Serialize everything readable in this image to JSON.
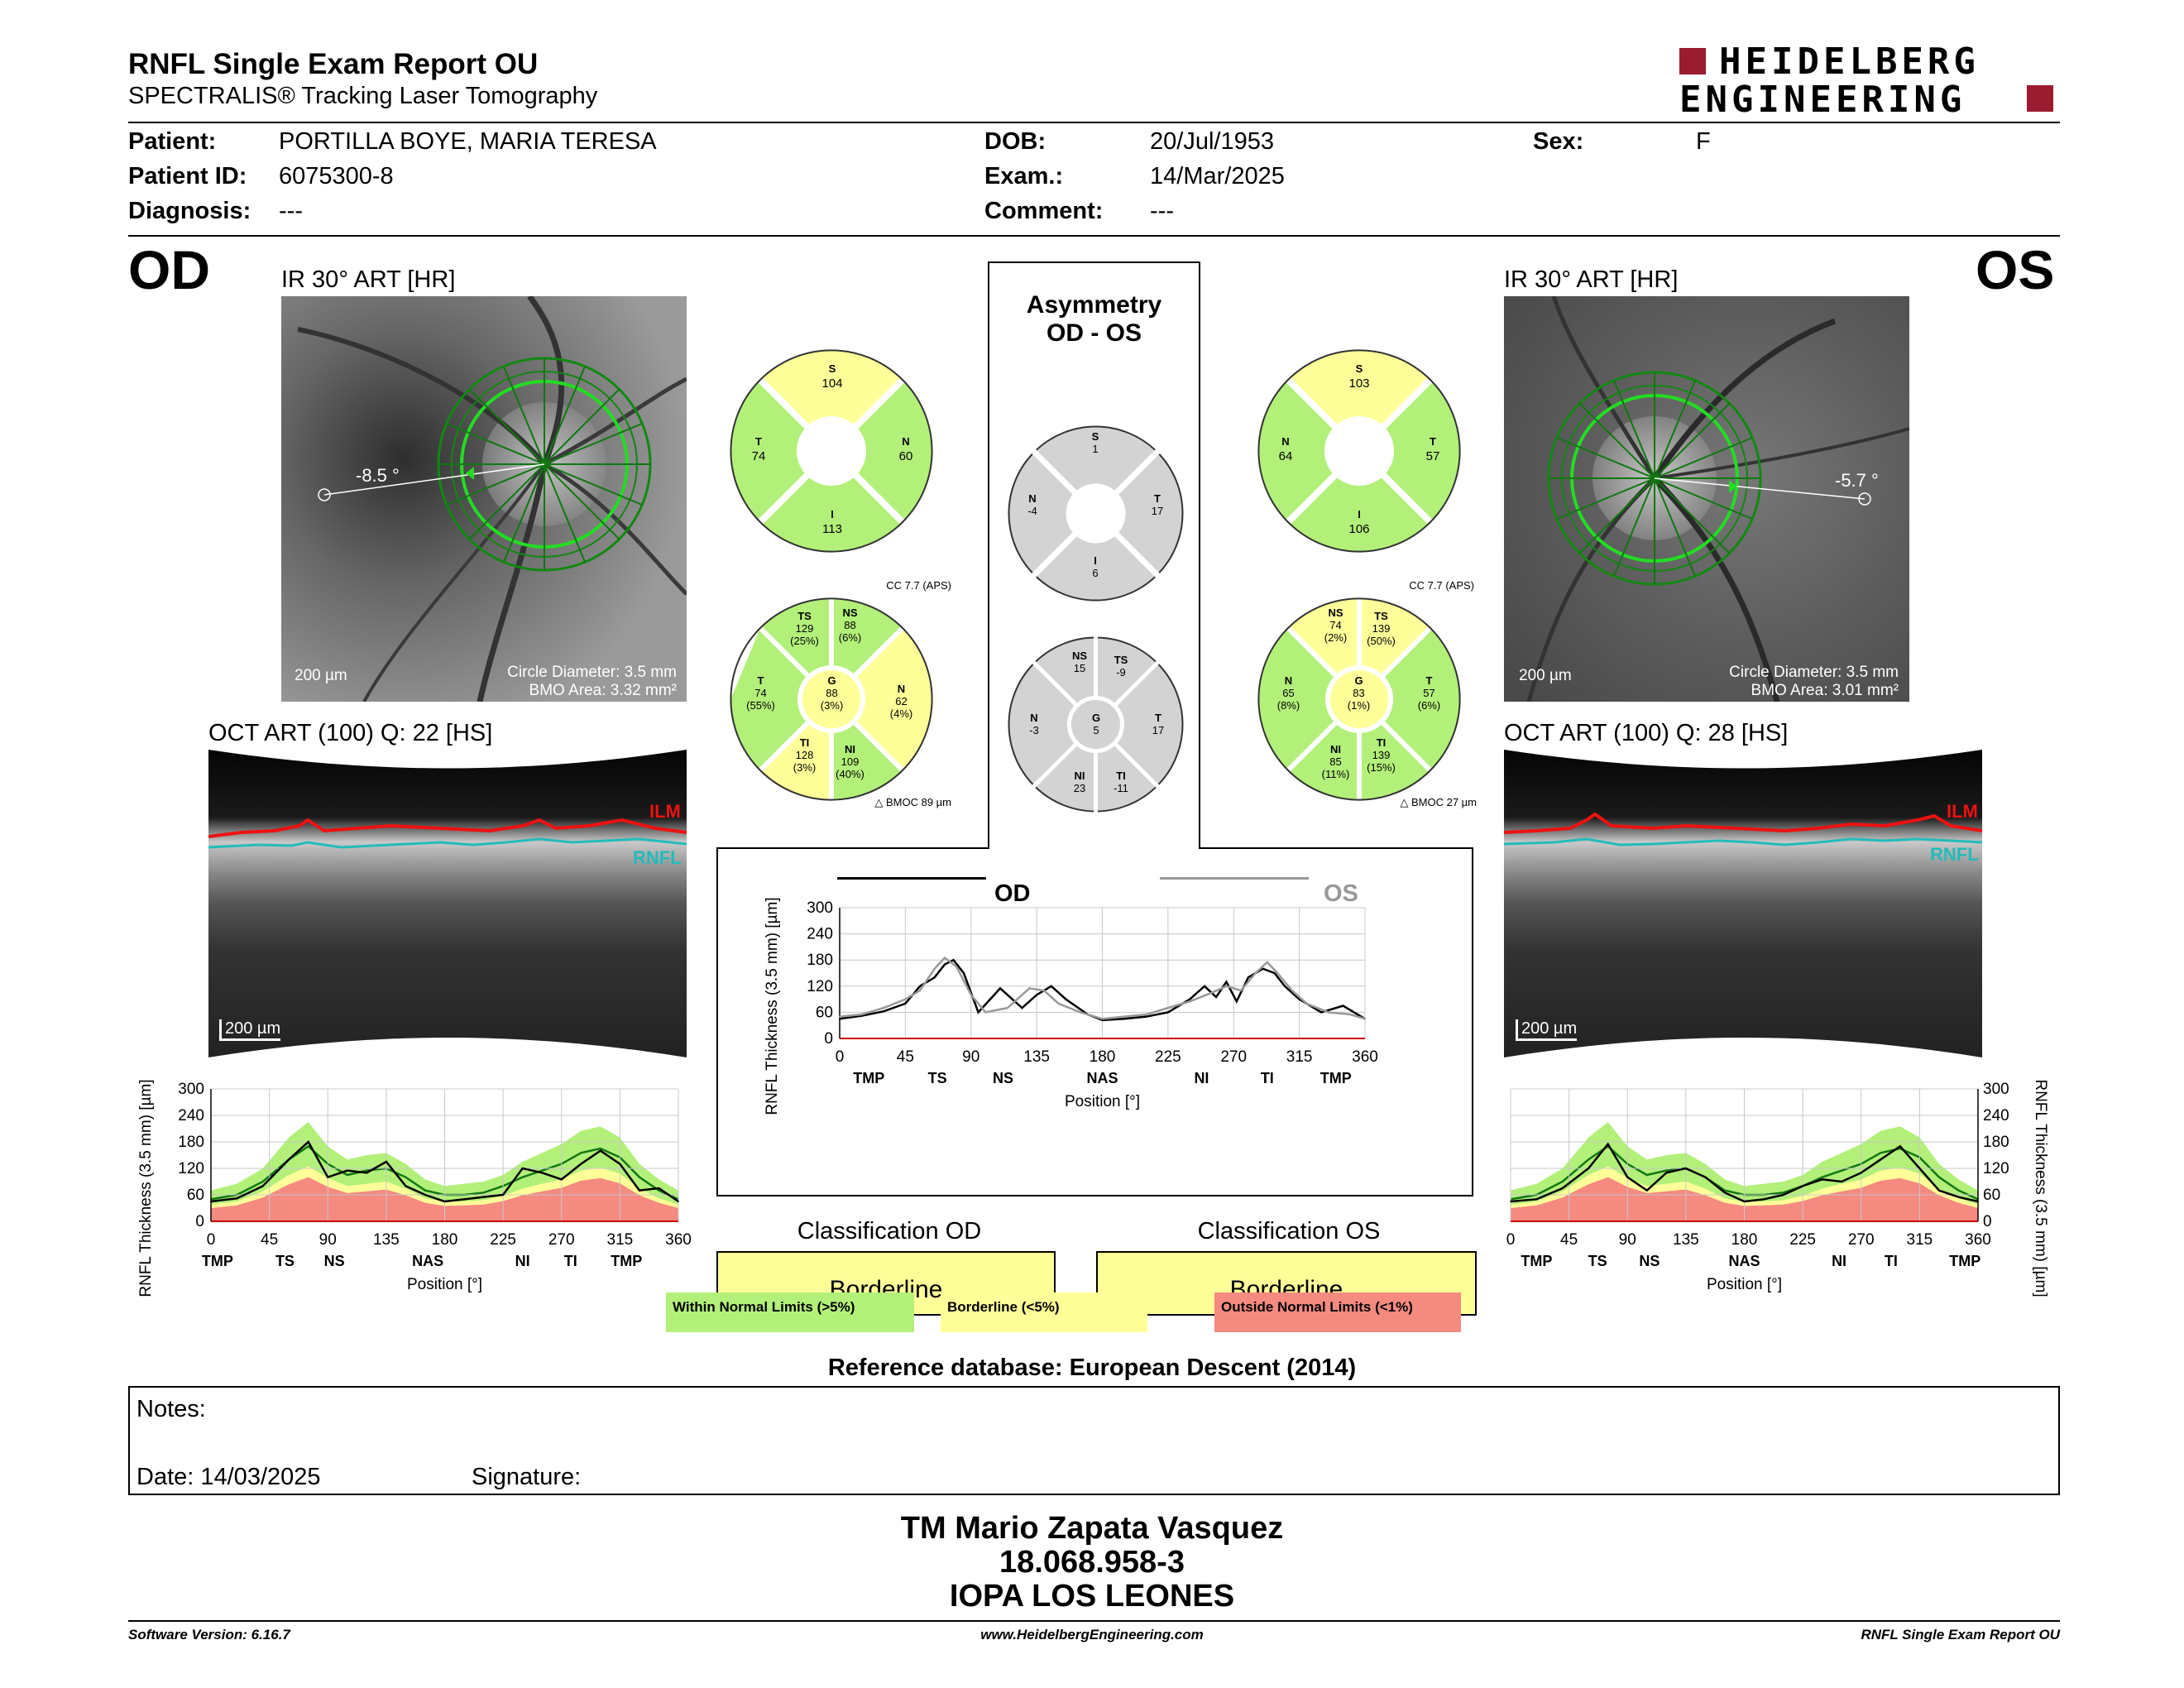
{
  "header": {
    "title": "RNFL Single Exam Report OU",
    "subtitle": "SPECTRALIS® Tracking Laser Tomography",
    "logo_line1": "HEIDELBERG",
    "logo_line2": "ENGINEERING",
    "brand_color": "#9b1b30"
  },
  "patient": {
    "patient_label": "Patient:",
    "patient_value": "PORTILLA BOYE, MARIA TERESA",
    "id_label": "Patient ID:",
    "id_value": "6075300-8",
    "diagnosis_label": "Diagnosis:",
    "diagnosis_value": "---",
    "dob_label": "DOB:",
    "dob_value": "20/Jul/1953",
    "exam_label": "Exam.:",
    "exam_value": "14/Mar/2025",
    "comment_label": "Comment:",
    "comment_value": "---",
    "sex_label": "Sex:",
    "sex_value": "F"
  },
  "od": {
    "eye": "OD",
    "ir_label": "IR 30° ART [HR]",
    "angle": "-8.5 °",
    "scale": "200 µm",
    "circle_diameter": "Circle Diameter: 3.5 mm",
    "bmo_area": "BMO Area: 3.32 mm²",
    "oct_label": "OCT ART (100) Q: 22 [HS]",
    "ilm": "ILM",
    "rnfl": "RNFL",
    "oct_scale": "200 µm",
    "quad": {
      "S": "104",
      "T": "74",
      "N": "60",
      "I": "113"
    },
    "cc": "CC 7.7 (APS)",
    "bmoc": "BMOC 89 µm",
    "sectors": {
      "TS": {
        "v": "129",
        "p": "(25%)"
      },
      "NS": {
        "v": "88",
        "p": "(6%)"
      },
      "T": {
        "v": "74",
        "p": "(55%)"
      },
      "G": {
        "v": "88",
        "p": "(3%)"
      },
      "N": {
        "v": "62",
        "p": "(4%)"
      },
      "TI": {
        "v": "128",
        "p": "(3%)"
      },
      "NI": {
        "v": "109",
        "p": "(40%)"
      }
    },
    "classification_title": "Classification OD",
    "classification": "Borderline"
  },
  "os": {
    "eye": "OS",
    "ir_label": "IR 30° ART [HR]",
    "angle": "-5.7 °",
    "scale": "200 µm",
    "circle_diameter": "Circle Diameter: 3.5 mm",
    "bmo_area": "BMO Area: 3.01 mm²",
    "oct_label": "OCT ART (100) Q: 28 [HS]",
    "ilm": "ILM",
    "rnfl": "RNFL",
    "oct_scale": "200 µm",
    "quad": {
      "S": "103",
      "N": "64",
      "T": "57",
      "I": "106"
    },
    "cc": "CC 7.7 (APS)",
    "bmoc": "BMOC 27 µm",
    "sectors": {
      "NS": {
        "v": "74",
        "p": "(2%)"
      },
      "TS": {
        "v": "139",
        "p": "(50%)"
      },
      "N": {
        "v": "65",
        "p": "(8%)"
      },
      "G": {
        "v": "83",
        "p": "(1%)"
      },
      "T": {
        "v": "57",
        "p": "(6%)"
      },
      "NI": {
        "v": "85",
        "p": "(11%)"
      },
      "TI": {
        "v": "139",
        "p": "(15%)"
      }
    },
    "classification_title": "Classification OS",
    "classification": "Borderline"
  },
  "asymmetry": {
    "title1": "Asymmetry",
    "title2": "OD - OS",
    "quad": {
      "S": "1",
      "N": "-4",
      "T": "17",
      "I": "6"
    },
    "sectors": {
      "NS": "15",
      "TS": "-9",
      "N": "-3",
      "G": "5",
      "T": "17",
      "NI": "23",
      "TI": "-11"
    }
  },
  "labels": {
    "S": "S",
    "T": "T",
    "N": "N",
    "I": "I",
    "G": "G",
    "TS": "TS",
    "NS": "NS",
    "TI": "TI",
    "NI": "NI"
  },
  "chart_data": [
    {
      "type": "line",
      "title": "",
      "ylabel": "RNFL Thickness (3.5 mm) [µm]",
      "xlabel": "Position [°]",
      "ylim": [
        0,
        300
      ],
      "xlim": [
        0,
        360
      ],
      "yticks": [
        "0",
        "60",
        "120",
        "180",
        "240",
        "300"
      ],
      "xticks": [
        "0",
        "45",
        "90",
        "135",
        "180",
        "225",
        "270",
        "315",
        "360"
      ],
      "sector_labels": [
        "TMP",
        "TS",
        "NS",
        "NAS",
        "NI",
        "TI",
        "TMP"
      ],
      "sector_positions": [
        20,
        67,
        112,
        180,
        248,
        293,
        340
      ],
      "series": [
        {
          "name": "OD",
          "color": "#000000",
          "x": [
            0,
            15,
            30,
            45,
            55,
            65,
            72,
            78,
            85,
            95,
            110,
            125,
            135,
            145,
            155,
            170,
            180,
            195,
            210,
            225,
            240,
            250,
            258,
            265,
            272,
            280,
            290,
            298,
            305,
            315,
            330,
            345,
            360
          ],
          "values": [
            45,
            52,
            62,
            80,
            120,
            140,
            170,
            180,
            150,
            60,
            115,
            70,
            100,
            120,
            90,
            55,
            42,
            45,
            50,
            60,
            90,
            120,
            95,
            130,
            85,
            140,
            160,
            150,
            120,
            90,
            60,
            75,
            45
          ]
        },
        {
          "name": "OS",
          "color": "#999999",
          "x": [
            0,
            15,
            30,
            45,
            55,
            65,
            72,
            80,
            90,
            100,
            115,
            130,
            140,
            150,
            165,
            180,
            195,
            210,
            225,
            240,
            255,
            265,
            275,
            285,
            293,
            300,
            310,
            320,
            335,
            350,
            360
          ],
          "values": [
            50,
            55,
            70,
            90,
            110,
            160,
            185,
            165,
            100,
            60,
            70,
            115,
            110,
            80,
            60,
            45,
            50,
            55,
            70,
            85,
            105,
            120,
            110,
            150,
            175,
            150,
            110,
            80,
            60,
            55,
            45
          ]
        }
      ]
    },
    {
      "type": "area",
      "title": "",
      "ylabel": "RNFL Thickness (3.5 mm) [µm]",
      "xlabel": "Position [°]",
      "ylim": [
        0,
        300
      ],
      "xlim": [
        0,
        360
      ],
      "yticks": [
        "0",
        "60",
        "120",
        "180",
        "240",
        "300"
      ],
      "xticks": [
        "0",
        "45",
        "90",
        "135",
        "180",
        "225",
        "270",
        "315",
        "360"
      ],
      "sector_labels": [
        "TMP",
        "TS",
        "NS",
        "NAS",
        "NI",
        "TI",
        "TMP"
      ],
      "sector_positions": [
        5,
        57,
        95,
        167,
        240,
        277,
        320
      ],
      "x": [
        0,
        20,
        40,
        60,
        75,
        90,
        105,
        120,
        135,
        150,
        165,
        180,
        195,
        210,
        225,
        240,
        255,
        270,
        285,
        300,
        315,
        330,
        345,
        360
      ],
      "normal_band_upper": [
        70,
        85,
        120,
        190,
        225,
        170,
        140,
        150,
        155,
        130,
        95,
        80,
        85,
        90,
        105,
        135,
        155,
        175,
        205,
        215,
        190,
        130,
        95,
        70
      ],
      "normal_mean": [
        50,
        60,
        90,
        140,
        170,
        130,
        105,
        115,
        120,
        100,
        70,
        60,
        60,
        65,
        80,
        100,
        115,
        130,
        155,
        165,
        145,
        100,
        70,
        50
      ],
      "borderline_upper": [
        38,
        45,
        68,
        105,
        125,
        98,
        80,
        85,
        90,
        74,
        52,
        44,
        45,
        48,
        58,
        74,
        85,
        95,
        115,
        122,
        108,
        74,
        52,
        38
      ],
      "outside_upper": [
        30,
        36,
        54,
        84,
        100,
        78,
        64,
        68,
        72,
        59,
        42,
        35,
        36,
        38,
        46,
        59,
        68,
        76,
        92,
        98,
        86,
        59,
        42,
        30
      ],
      "series": [
        {
          "name": "OD",
          "color": "#000000",
          "values": [
            45,
            52,
            80,
            140,
            180,
            100,
            115,
            110,
            135,
            80,
            60,
            45,
            50,
            55,
            60,
            120,
            110,
            95,
            130,
            160,
            130,
            70,
            75,
            45
          ]
        }
      ]
    },
    {
      "type": "area",
      "title": "",
      "ylabel": "RNFL Thickness (3.5 mm) [µm]",
      "xlabel": "Position [°]",
      "ylim": [
        0,
        300
      ],
      "xlim": [
        0,
        360
      ],
      "yticks": [
        "0",
        "60",
        "120",
        "180",
        "240",
        "300"
      ],
      "xticks": [
        "0",
        "45",
        "90",
        "135",
        "180",
        "225",
        "270",
        "315",
        "360"
      ],
      "sector_labels": [
        "TMP",
        "TS",
        "NS",
        "NAS",
        "NI",
        "TI",
        "TMP"
      ],
      "sector_positions": [
        20,
        67,
        107,
        180,
        253,
        293,
        350
      ],
      "x": [
        0,
        20,
        40,
        60,
        75,
        90,
        105,
        120,
        135,
        150,
        165,
        180,
        195,
        210,
        225,
        240,
        255,
        270,
        285,
        300,
        315,
        330,
        345,
        360
      ],
      "normal_band_upper": [
        70,
        85,
        120,
        190,
        225,
        170,
        140,
        150,
        155,
        130,
        95,
        80,
        85,
        90,
        105,
        135,
        155,
        175,
        205,
        215,
        190,
        130,
        95,
        70
      ],
      "normal_mean": [
        50,
        60,
        90,
        140,
        170,
        130,
        105,
        115,
        120,
        100,
        70,
        60,
        60,
        65,
        80,
        100,
        115,
        130,
        155,
        165,
        145,
        100,
        70,
        50
      ],
      "borderline_upper": [
        38,
        45,
        68,
        105,
        125,
        98,
        80,
        85,
        90,
        74,
        52,
        44,
        45,
        48,
        58,
        74,
        85,
        95,
        115,
        122,
        108,
        74,
        52,
        38
      ],
      "outside_upper": [
        30,
        36,
        54,
        84,
        100,
        78,
        64,
        68,
        72,
        59,
        42,
        35,
        36,
        38,
        46,
        59,
        68,
        76,
        92,
        98,
        86,
        59,
        42,
        30
      ],
      "series": [
        {
          "name": "OS",
          "color": "#000000",
          "values": [
            45,
            50,
            75,
            120,
            175,
            100,
            70,
            110,
            120,
            100,
            65,
            45,
            50,
            60,
            80,
            95,
            90,
            110,
            140,
            170,
            120,
            70,
            55,
            45
          ]
        }
      ]
    }
  ],
  "legend": {
    "wnl": "Within Normal Limits (>5%)",
    "bl": "Borderline (<5%)",
    "onl": "Outside Normal Limits (<1%)",
    "wnl_color": "#b3f07a",
    "bl_color": "#ffff99",
    "onl_color": "#f58a80",
    "gray_color": "#d3d3d3"
  },
  "reference": "Reference database: European Descent (2014)",
  "notes": {
    "notes_label": "Notes:",
    "date_label": "Date: 14/03/2025",
    "signature_label": "Signature:"
  },
  "signature": {
    "line1": "TM Mario Zapata Vasquez",
    "line2": "18.068.958-3",
    "line3": "IOPA LOS LEONES"
  },
  "footer": {
    "left": "Software Version: 6.16.7",
    "center": "www.HeidelbergEngineering.com",
    "right": "RNFL Single Exam Report OU"
  }
}
